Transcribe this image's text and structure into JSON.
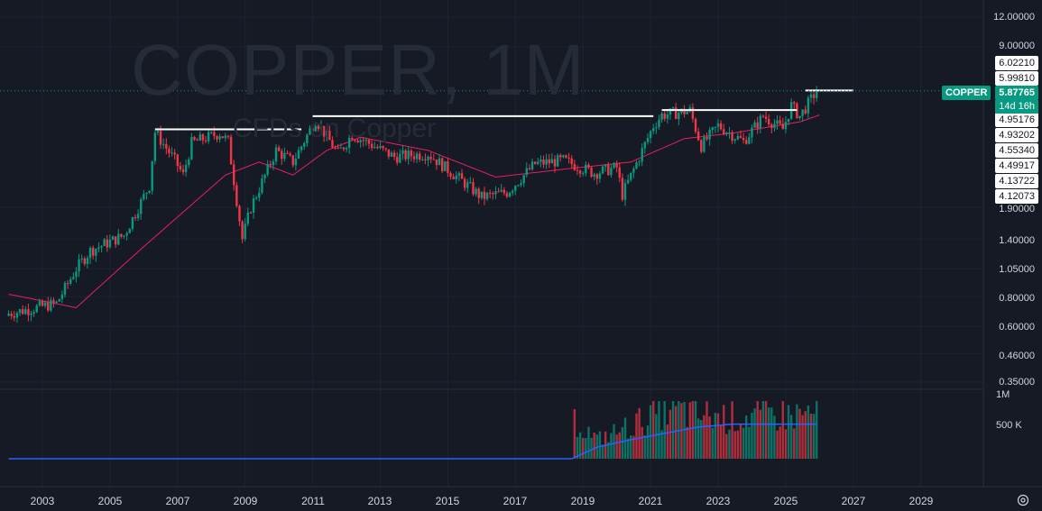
{
  "header": {
    "symbol_watermark": "COPPER, 1M",
    "subtitle_watermark": "CFDs on Copper"
  },
  "price_axis": {
    "ticks": [
      "12.00000",
      "9.00000",
      "1.90000",
      "1.40000",
      "1.05000",
      "0.80000",
      "0.60000",
      "0.46000",
      "0.35000"
    ],
    "tick_values": [
      12.0,
      9.0,
      1.9,
      1.4,
      1.05,
      0.8,
      0.6,
      0.46,
      0.35
    ],
    "level_labels": [
      "6.02210",
      "5.99810",
      "4.95176",
      "4.93202",
      "4.55340",
      "4.49917",
      "4.13722",
      "4.12073"
    ]
  },
  "current_price": {
    "symbol": "COPPER",
    "price": "5.87765",
    "countdown": "14d 16h",
    "value": 5.87765
  },
  "volume_axis": {
    "ticks": [
      "1M",
      "500 K"
    ]
  },
  "time_axis": {
    "labels": [
      "2003",
      "2005",
      "2007",
      "2009",
      "2011",
      "2013",
      "2015",
      "2017",
      "2019",
      "2021",
      "2023",
      "2025",
      "2027",
      "2029"
    ]
  },
  "icons": {
    "settings": "gear-icon"
  },
  "colors": {
    "up": "#089981",
    "down": "#f23645",
    "ma_price": "#e91e63",
    "ma_volume": "#2962ff",
    "background": "#161a25"
  },
  "chart_data": {
    "type": "candlestick",
    "interval": "1M",
    "scale": "log",
    "ylim": [
      0.35,
      12.0
    ],
    "x_range": [
      "2002-01",
      "2030-01"
    ],
    "price_anchors": [
      {
        "date": "2002-01",
        "price": 0.68
      },
      {
        "date": "2003-06",
        "price": 0.75
      },
      {
        "date": "2004-01",
        "price": 1.05
      },
      {
        "date": "2004-06",
        "price": 1.25
      },
      {
        "date": "2005-06",
        "price": 1.45
      },
      {
        "date": "2006-03",
        "price": 2.35
      },
      {
        "date": "2006-05",
        "price": 3.95
      },
      {
        "date": "2006-12",
        "price": 3.0
      },
      {
        "date": "2007-03",
        "price": 2.6
      },
      {
        "date": "2007-06",
        "price": 3.55
      },
      {
        "date": "2008-04",
        "price": 3.9
      },
      {
        "date": "2008-07",
        "price": 3.6
      },
      {
        "date": "2008-12",
        "price": 1.4
      },
      {
        "date": "2009-03",
        "price": 1.9
      },
      {
        "date": "2009-12",
        "price": 3.3
      },
      {
        "date": "2010-06",
        "price": 2.95
      },
      {
        "date": "2011-02",
        "price": 4.45
      },
      {
        "date": "2011-10",
        "price": 3.2
      },
      {
        "date": "2012-03",
        "price": 3.85
      },
      {
        "date": "2013-06",
        "price": 3.1
      },
      {
        "date": "2014-06",
        "price": 3.2
      },
      {
        "date": "2015-08",
        "price": 2.35
      },
      {
        "date": "2016-01",
        "price": 2.1
      },
      {
        "date": "2016-10",
        "price": 2.2
      },
      {
        "date": "2017-08",
        "price": 2.9
      },
      {
        "date": "2018-06",
        "price": 3.0
      },
      {
        "date": "2019-05",
        "price": 2.65
      },
      {
        "date": "2020-01",
        "price": 2.8
      },
      {
        "date": "2020-03",
        "price": 2.15
      },
      {
        "date": "2021-02",
        "price": 4.2
      },
      {
        "date": "2021-05",
        "price": 4.65
      },
      {
        "date": "2022-03",
        "price": 4.85
      },
      {
        "date": "2022-07",
        "price": 3.45
      },
      {
        "date": "2023-01",
        "price": 4.2
      },
      {
        "date": "2023-10",
        "price": 3.6
      },
      {
        "date": "2024-05",
        "price": 4.6
      },
      {
        "date": "2024-12",
        "price": 4.05
      },
      {
        "date": "2025-03",
        "price": 5.1
      },
      {
        "date": "2025-06",
        "price": 4.6
      },
      {
        "date": "2025-12",
        "price": 5.88
      }
    ],
    "price_ma_anchors": [
      {
        "date": "2002-01",
        "price": 0.82
      },
      {
        "date": "2004-01",
        "price": 0.72
      },
      {
        "date": "2006-01",
        "price": 1.3
      },
      {
        "date": "2008-06",
        "price": 2.6
      },
      {
        "date": "2009-06",
        "price": 2.95
      },
      {
        "date": "2010-06",
        "price": 2.6
      },
      {
        "date": "2011-06",
        "price": 3.3
      },
      {
        "date": "2012-06",
        "price": 3.75
      },
      {
        "date": "2014-06",
        "price": 3.3
      },
      {
        "date": "2016-06",
        "price": 2.55
      },
      {
        "date": "2018-06",
        "price": 2.75
      },
      {
        "date": "2020-06",
        "price": 2.95
      },
      {
        "date": "2022-01",
        "price": 3.7
      },
      {
        "date": "2023-06",
        "price": 3.9
      },
      {
        "date": "2025-06",
        "price": 4.35
      },
      {
        "date": "2026-01",
        "price": 4.65
      }
    ],
    "resistance_lines": [
      {
        "start": "2006-05",
        "end": "2010-09",
        "price": 4.05
      },
      {
        "start": "2011-01",
        "end": "2021-02",
        "price": 4.6
      },
      {
        "start": "2021-05",
        "end": "2025-05",
        "price": 4.88
      },
      {
        "start": "2025-08",
        "end": "2027-01",
        "price": 5.9
      }
    ],
    "volume_anchors": [
      {
        "date": "2018-10",
        "volume": 0.7
      },
      {
        "date": "2019-06",
        "volume": 0.35
      },
      {
        "date": "2020-06",
        "volume": 0.6
      },
      {
        "date": "2021-06",
        "volume": 0.9
      },
      {
        "date": "2022-06",
        "volume": 0.8
      },
      {
        "date": "2023-06",
        "volume": 0.75
      },
      {
        "date": "2024-06",
        "volume": 0.8
      },
      {
        "date": "2025-06",
        "volume": 0.8
      },
      {
        "date": "2025-12",
        "volume": 0.85
      }
    ],
    "volume_ma_anchors": [
      {
        "date": "2002-01",
        "volume": 0
      },
      {
        "date": "2018-09",
        "volume": 0
      },
      {
        "date": "2019-06",
        "volume": 0.2
      },
      {
        "date": "2020-06",
        "volume": 0.33
      },
      {
        "date": "2021-06",
        "volume": 0.44
      },
      {
        "date": "2022-06",
        "volume": 0.55
      },
      {
        "date": "2023-06",
        "volume": 0.6
      },
      {
        "date": "2025-06",
        "volume": 0.6
      },
      {
        "date": "2025-12",
        "volume": 0.6
      }
    ],
    "volume_scale_max": 1.0
  }
}
